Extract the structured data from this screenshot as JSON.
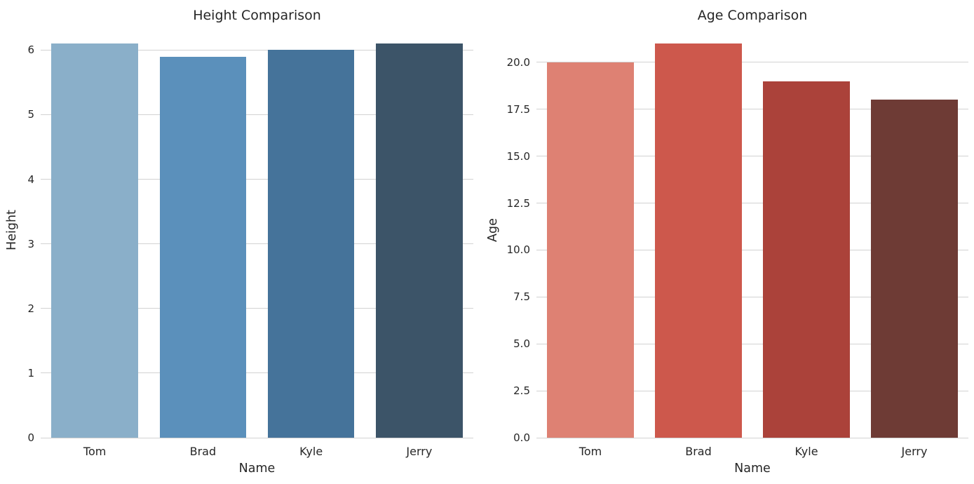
{
  "figure": {
    "background": "#ffffff",
    "grid_color": "#d2d2d2",
    "text_color": "#262626"
  },
  "chart_data": [
    {
      "type": "bar",
      "title": "Height Comparison",
      "xlabel": "Name",
      "ylabel": "Height",
      "categories": [
        "Tom",
        "Brad",
        "Kyle",
        "Jerry"
      ],
      "values": [
        6.1,
        5.9,
        6.0,
        6.1
      ],
      "bar_colors": [
        "#8aafc9",
        "#5b90bb",
        "#45739a",
        "#3c5468"
      ],
      "ytick_values": [
        0,
        1,
        2,
        3,
        4,
        5,
        6
      ],
      "ytick_labels": [
        "0",
        "1",
        "2",
        "3",
        "4",
        "5",
        "6"
      ],
      "ylim": [
        0,
        6.405
      ],
      "grid": "horizontal",
      "legend": "none"
    },
    {
      "type": "bar",
      "title": "Age Comparison",
      "xlabel": "Name",
      "ylabel": "Age",
      "categories": [
        "Tom",
        "Brad",
        "Kyle",
        "Jerry"
      ],
      "values": [
        20,
        21,
        19,
        18
      ],
      "bar_colors": [
        "#de8173",
        "#cd584c",
        "#ab423a",
        "#6e3b35"
      ],
      "ytick_values": [
        0,
        2.5,
        5,
        7.5,
        10,
        12.5,
        15,
        17.5,
        20
      ],
      "ytick_labels": [
        "0.0",
        "2.5",
        "5.0",
        "7.5",
        "10.0",
        "12.5",
        "15.0",
        "17.5",
        "20.0"
      ],
      "ylim": [
        0,
        22.05
      ],
      "grid": "horizontal",
      "legend": "none"
    }
  ]
}
